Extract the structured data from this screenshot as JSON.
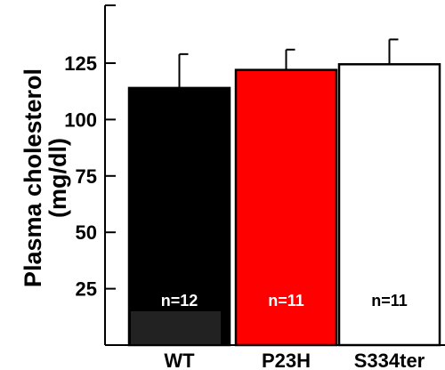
{
  "chart_data": {
    "type": "bar",
    "title": "",
    "ylabel_lines": [
      "Plasma cholesterol",
      "(mg/dl)"
    ],
    "xlabel": "",
    "categories": [
      "WT",
      "P23H",
      "S334ter"
    ],
    "values": [
      114,
      122,
      124.5
    ],
    "errors": [
      15,
      9,
      11
    ],
    "n_labels": [
      "n=12",
      "n=11",
      "n=11"
    ],
    "bar_colors": [
      "#000000",
      "#ff0000",
      "#ffffff"
    ],
    "n_label_colors": [
      "#ffffff",
      "#ffffff",
      "#000000"
    ],
    "yticks": [
      25,
      50,
      75,
      100,
      125
    ],
    "ylim": [
      0,
      150
    ],
    "grid": false
  }
}
